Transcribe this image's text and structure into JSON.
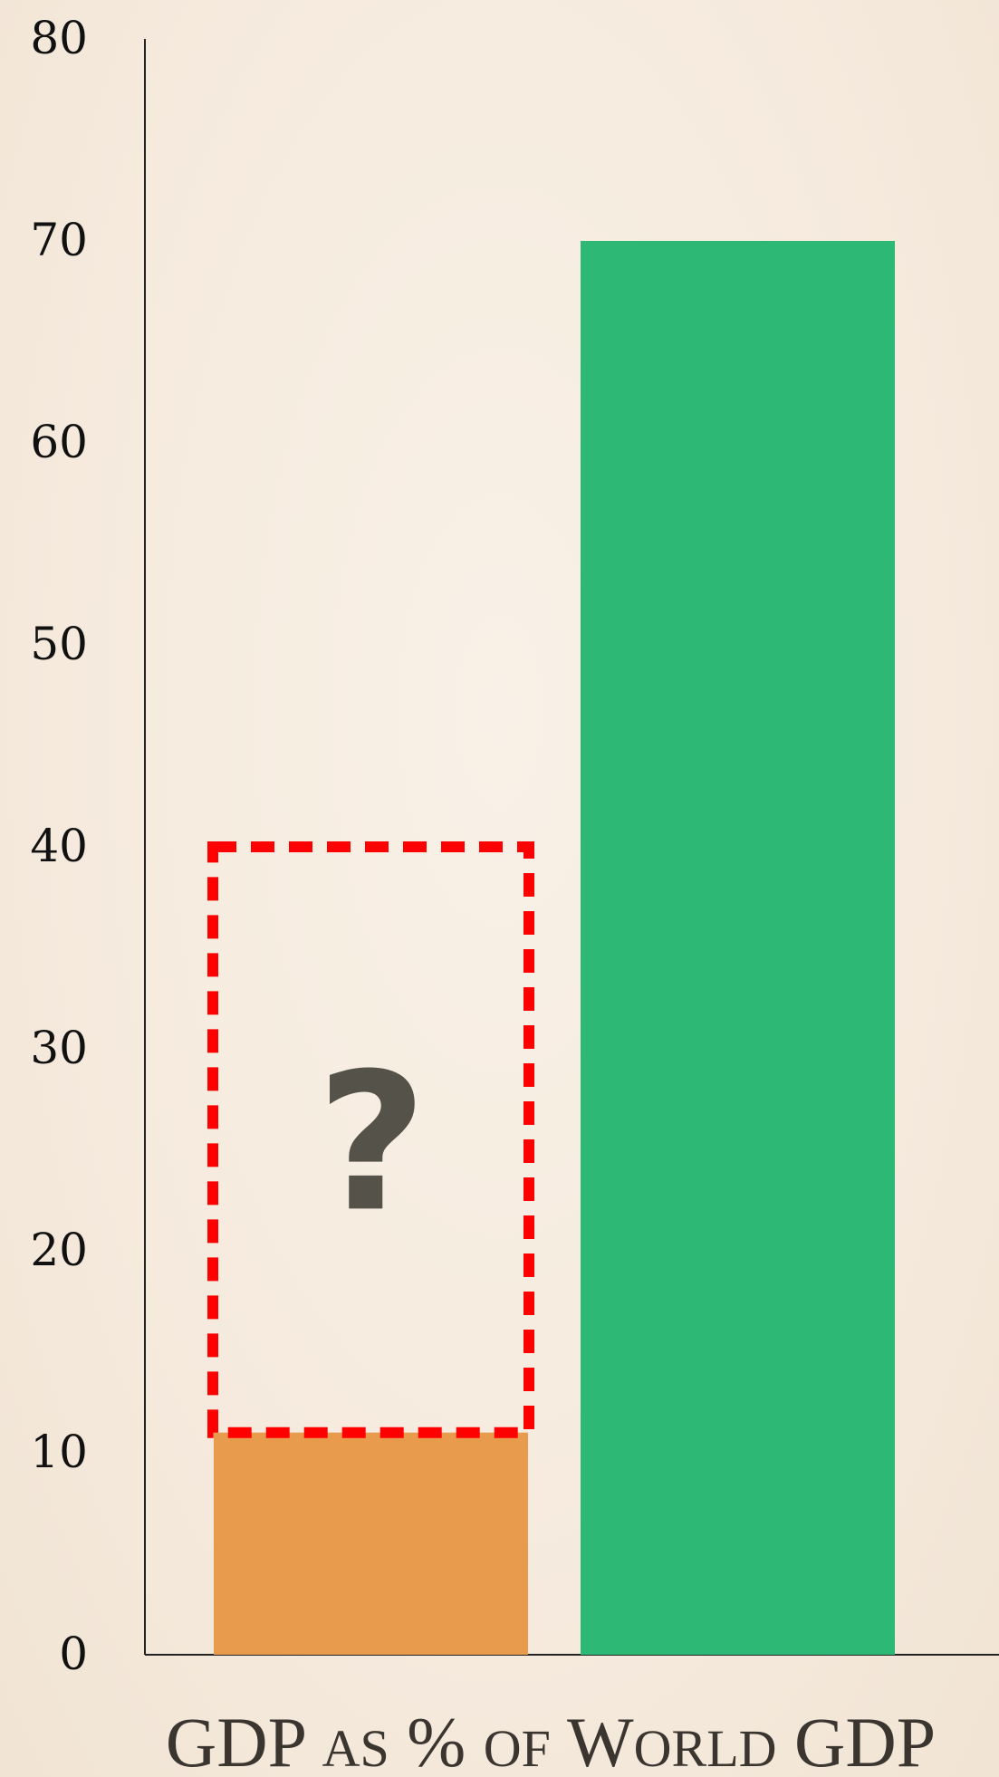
{
  "chart_data": {
    "type": "bar",
    "xlabel": "GDP as % of World GDP",
    "ylim": [
      0,
      80
    ],
    "yticks": [
      0,
      10,
      20,
      30,
      40,
      50,
      60,
      70,
      80
    ],
    "grid": false,
    "legend": "none",
    "bars": [
      {
        "value": 11,
        "color": "#e89b4c"
      },
      {
        "value": 70,
        "color": "#2db876"
      }
    ],
    "annotation": {
      "type": "dashed-box",
      "bar_index": 0,
      "from": 11,
      "to": 40,
      "color": "#ff0000",
      "label": "?"
    }
  }
}
